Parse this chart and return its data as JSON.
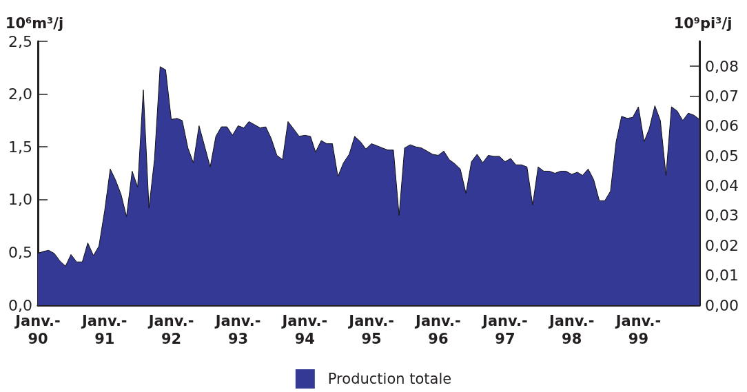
{
  "chart_data": {
    "type": "area",
    "ylabel": "10⁶m³/j",
    "y2label": "10⁹pi³/j",
    "x": [
      "1990-01",
      "1990-02",
      "1990-03",
      "1990-04",
      "1990-05",
      "1990-06",
      "1990-07",
      "1990-08",
      "1990-09",
      "1990-10",
      "1990-11",
      "1990-12",
      "1991-01",
      "1991-02",
      "1991-03",
      "1991-04",
      "1991-05",
      "1991-06",
      "1991-07",
      "1991-08",
      "1991-09",
      "1991-10",
      "1991-11",
      "1991-12",
      "1992-01",
      "1992-02",
      "1992-03",
      "1992-04",
      "1992-05",
      "1992-06",
      "1992-07",
      "1992-08",
      "1992-09",
      "1992-10",
      "1992-11",
      "1992-12",
      "1993-01",
      "1993-02",
      "1993-03",
      "1993-04",
      "1993-05",
      "1993-06",
      "1993-07",
      "1993-08",
      "1993-09",
      "1993-10",
      "1993-11",
      "1993-12",
      "1994-01",
      "1994-02",
      "1994-03",
      "1994-04",
      "1994-05",
      "1994-06",
      "1994-07",
      "1994-08",
      "1994-09",
      "1994-10",
      "1994-11",
      "1994-12",
      "1995-01",
      "1995-02",
      "1995-03",
      "1995-04",
      "1995-05",
      "1995-06",
      "1995-07",
      "1995-08",
      "1995-09",
      "1995-10",
      "1995-11",
      "1995-12",
      "1996-01",
      "1996-02",
      "1996-03",
      "1996-04",
      "1996-05",
      "1996-06",
      "1996-07",
      "1996-08",
      "1996-09",
      "1996-10",
      "1996-11",
      "1996-12",
      "1997-01",
      "1997-02",
      "1997-03",
      "1997-04",
      "1997-05",
      "1997-06",
      "1997-07",
      "1997-08",
      "1997-09",
      "1997-10",
      "1997-11",
      "1997-12",
      "1998-01",
      "1998-02",
      "1998-03",
      "1998-04",
      "1998-05",
      "1998-06",
      "1998-07",
      "1998-08",
      "1998-09",
      "1998-10",
      "1998-11",
      "1998-12",
      "1999-01",
      "1999-02",
      "1999-03",
      "1999-04",
      "1999-05",
      "1999-06",
      "1999-07",
      "1999-08",
      "1999-09",
      "1999-10",
      "1999-11",
      "1999-12"
    ],
    "series": [
      {
        "name": "Production totale",
        "color": "#333994",
        "values": [
          0.49,
          0.51,
          0.52,
          0.49,
          0.42,
          0.37,
          0.48,
          0.41,
          0.41,
          0.59,
          0.47,
          0.56,
          0.89,
          1.29,
          1.19,
          1.05,
          0.84,
          1.27,
          1.12,
          2.04,
          0.92,
          1.38,
          2.26,
          2.23,
          1.76,
          1.77,
          1.75,
          1.49,
          1.35,
          1.7,
          1.51,
          1.31,
          1.6,
          1.69,
          1.69,
          1.61,
          1.7,
          1.68,
          1.74,
          1.71,
          1.68,
          1.69,
          1.58,
          1.42,
          1.38,
          1.74,
          1.67,
          1.6,
          1.61,
          1.6,
          1.45,
          1.56,
          1.53,
          1.53,
          1.22,
          1.35,
          1.43,
          1.6,
          1.55,
          1.48,
          1.53,
          1.51,
          1.49,
          1.47,
          1.47,
          0.85,
          1.49,
          1.52,
          1.5,
          1.49,
          1.46,
          1.43,
          1.42,
          1.46,
          1.38,
          1.34,
          1.29,
          1.06,
          1.36,
          1.43,
          1.35,
          1.42,
          1.41,
          1.41,
          1.36,
          1.39,
          1.33,
          1.33,
          1.31,
          0.95,
          1.31,
          1.27,
          1.27,
          1.25,
          1.27,
          1.27,
          1.24,
          1.26,
          1.23,
          1.29,
          1.19,
          0.99,
          0.99,
          1.08,
          1.55,
          1.79,
          1.77,
          1.78,
          1.88,
          1.55,
          1.67,
          1.89,
          1.75,
          1.23,
          1.88,
          1.84,
          1.75,
          1.82,
          1.8,
          1.76
        ]
      }
    ],
    "xlim": [
      "1990-01",
      "1999-12"
    ],
    "xticks": [
      {
        "value": "1990-01",
        "label": "Janv.-\n90"
      },
      {
        "value": "1991-01",
        "label": "Janv.-\n91"
      },
      {
        "value": "1992-01",
        "label": "Janv.-\n92"
      },
      {
        "value": "1993-01",
        "label": "Janv.-\n93"
      },
      {
        "value": "1994-01",
        "label": "Janv.-\n94"
      },
      {
        "value": "1995-01",
        "label": "Janv.-\n95"
      },
      {
        "value": "1996-01",
        "label": "Janv.-\n96"
      },
      {
        "value": "1997-01",
        "label": "Janv.-\n97"
      },
      {
        "value": "1998-01",
        "label": "Janv.-\n98"
      },
      {
        "value": "1999-01",
        "label": "Janv.-\n99"
      }
    ],
    "ylim": [
      0,
      2.5
    ],
    "yticks": [
      {
        "value": 0,
        "label": "0,0"
      },
      {
        "value": 0.5,
        "label": "0,5"
      },
      {
        "value": 1,
        "label": "1,0"
      },
      {
        "value": 1.5,
        "label": "1,5"
      },
      {
        "value": 2,
        "label": "2,0"
      },
      {
        "value": 2.5,
        "label": "2,5"
      }
    ],
    "y2lim": [
      0,
      0.0883
    ],
    "y2ticks": [
      {
        "value": 0,
        "label": "0,00"
      },
      {
        "value": 0.01,
        "label": "0,01"
      },
      {
        "value": 0.02,
        "label": "0,02"
      },
      {
        "value": 0.03,
        "label": "0,03"
      },
      {
        "value": 0.04,
        "label": "0,04"
      },
      {
        "value": 0.05,
        "label": "0,05"
      },
      {
        "value": 0.06,
        "label": "0,06"
      },
      {
        "value": 0.07,
        "label": "0,07"
      },
      {
        "value": 0.08,
        "label": "0,08"
      }
    ],
    "grid": false,
    "legend": "bottom"
  }
}
